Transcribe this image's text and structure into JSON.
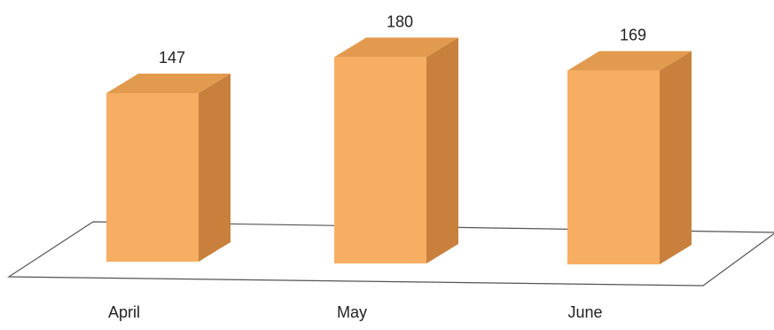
{
  "chart_data": {
    "type": "bar",
    "style": "3d-column",
    "categories": [
      "April",
      "May",
      "June"
    ],
    "values": [
      147,
      180,
      169
    ],
    "title": "",
    "xlabel": "",
    "ylabel": "",
    "grid": false,
    "legend": "none",
    "show_data_labels": true,
    "colors": {
      "bar_front": "#F7AE63",
      "bar_top": "#E29A4E",
      "bar_side": "#C8803C",
      "floor_stroke": "#555555"
    }
  }
}
